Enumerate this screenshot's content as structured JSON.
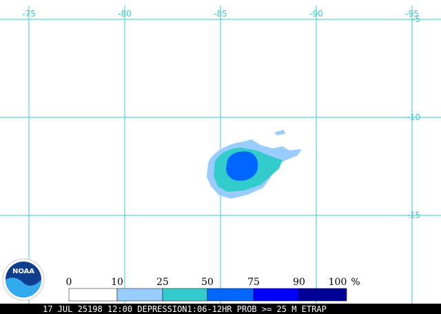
{
  "map": {
    "lon_labels": [
      "-75",
      "-80",
      "-85",
      "-90",
      "-95"
    ],
    "lat_labels": [
      "-5",
      "-10",
      "-15"
    ]
  },
  "legend": {
    "levels": [
      "0",
      "10",
      "25",
      "50",
      "75",
      "90",
      "100"
    ],
    "unit": "%",
    "colors": [
      "#ffffff",
      "#99ccff",
      "#33cccc",
      "#0066ff",
      "#0000ff",
      "#000099"
    ]
  },
  "logo": "NOAA",
  "caption": "17 JUL 25198 12:00 DEPRESSION1:06-12HR PROB >= 25 M ETRAP"
}
